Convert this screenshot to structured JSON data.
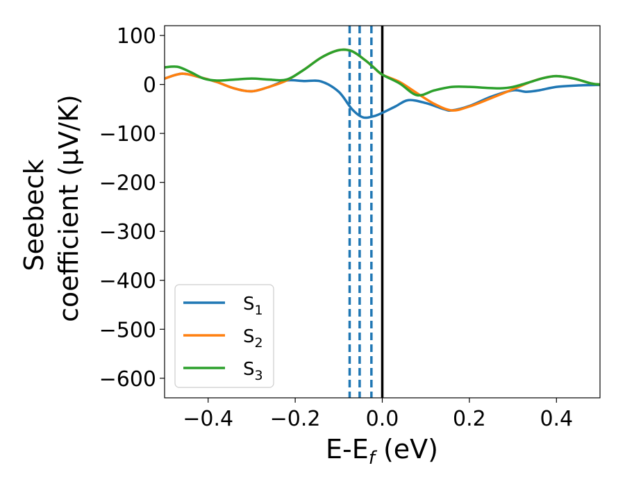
{
  "chart_data": {
    "type": "line",
    "xlabel_main": "E-E",
    "xlabel_sub": "f",
    "xlabel_unit": " (eV)",
    "ylabel_line1": "Seebeck",
    "ylabel_line2": "coefficient  (μV/K)",
    "xlim": [
      -0.5,
      0.5
    ],
    "ylim": [
      -640,
      120
    ],
    "x_ticks": [
      -0.4,
      -0.2,
      0.0,
      0.2,
      0.4
    ],
    "x_tick_labels": [
      "−0.4",
      "−0.2",
      "0.0",
      "0.2",
      "0.4"
    ],
    "y_ticks": [
      100,
      0,
      -100,
      -200,
      -300,
      -400,
      -500,
      -600
    ],
    "y_tick_labels": [
      "100",
      "0",
      "−100",
      "−200",
      "−300",
      "−400",
      "−500",
      "−600"
    ],
    "grid": false,
    "legend_position": "lower-left",
    "vertical_lines": [
      {
        "x": -0.075,
        "style": "dashed",
        "color": "#1f77b4"
      },
      {
        "x": -0.052,
        "style": "dashed",
        "color": "#1f77b4"
      },
      {
        "x": -0.025,
        "style": "dashed",
        "color": "#1f77b4"
      },
      {
        "x": 0.0,
        "style": "solid",
        "color": "#000000"
      }
    ],
    "series": [
      {
        "label_main": "S",
        "label_sub": "1",
        "color": "#1f77b4",
        "points": [
          [
            -0.5,
            12
          ],
          [
            -0.46,
            22
          ],
          [
            -0.42,
            15
          ],
          [
            -0.38,
            5
          ],
          [
            -0.34,
            -8
          ],
          [
            -0.3,
            -14
          ],
          [
            -0.26,
            -5
          ],
          [
            -0.22,
            8
          ],
          [
            -0.18,
            7
          ],
          [
            -0.14,
            6
          ],
          [
            -0.1,
            -15
          ],
          [
            -0.07,
            -50
          ],
          [
            -0.045,
            -67
          ],
          [
            -0.02,
            -65
          ],
          [
            0.0,
            -58
          ],
          [
            0.03,
            -45
          ],
          [
            0.06,
            -32
          ],
          [
            0.1,
            -38
          ],
          [
            0.14,
            -50
          ],
          [
            0.16,
            -53
          ],
          [
            0.2,
            -44
          ],
          [
            0.25,
            -25
          ],
          [
            0.3,
            -12
          ],
          [
            0.33,
            -15
          ],
          [
            0.36,
            -12
          ],
          [
            0.4,
            -5
          ],
          [
            0.45,
            -2
          ],
          [
            0.5,
            -1
          ]
        ]
      },
      {
        "label_main": "S",
        "label_sub": "2",
        "color": "#ff7f0e",
        "points": [
          [
            -0.5,
            12
          ],
          [
            -0.46,
            22
          ],
          [
            -0.42,
            15
          ],
          [
            -0.38,
            5
          ],
          [
            -0.34,
            -8
          ],
          [
            -0.3,
            -14
          ],
          [
            -0.26,
            -5
          ],
          [
            -0.22,
            8
          ],
          [
            -0.18,
            30
          ],
          [
            -0.14,
            55
          ],
          [
            -0.1,
            70
          ],
          [
            -0.07,
            68
          ],
          [
            -0.04,
            50
          ],
          [
            -0.02,
            35
          ],
          [
            0.0,
            20
          ],
          [
            0.04,
            5
          ],
          [
            0.08,
            -18
          ],
          [
            0.12,
            -40
          ],
          [
            0.16,
            -53
          ],
          [
            0.2,
            -45
          ],
          [
            0.25,
            -28
          ],
          [
            0.3,
            -10
          ],
          [
            0.34,
            5
          ],
          [
            0.37,
            13
          ],
          [
            0.4,
            17
          ],
          [
            0.44,
            12
          ],
          [
            0.48,
            2
          ],
          [
            0.5,
            0
          ]
        ]
      },
      {
        "label_main": "S",
        "label_sub": "3",
        "color": "#2ca02c",
        "points": [
          [
            -0.5,
            35
          ],
          [
            -0.47,
            36
          ],
          [
            -0.44,
            25
          ],
          [
            -0.41,
            12
          ],
          [
            -0.38,
            8
          ],
          [
            -0.34,
            10
          ],
          [
            -0.3,
            12
          ],
          [
            -0.26,
            10
          ],
          [
            -0.22,
            10
          ],
          [
            -0.18,
            30
          ],
          [
            -0.14,
            55
          ],
          [
            -0.1,
            70
          ],
          [
            -0.07,
            68
          ],
          [
            -0.04,
            50
          ],
          [
            -0.02,
            35
          ],
          [
            0.0,
            20
          ],
          [
            0.04,
            2
          ],
          [
            0.08,
            -22
          ],
          [
            0.12,
            -12
          ],
          [
            0.16,
            -5
          ],
          [
            0.2,
            -5
          ],
          [
            0.24,
            -7
          ],
          [
            0.27,
            -8
          ],
          [
            0.3,
            -5
          ],
          [
            0.34,
            5
          ],
          [
            0.37,
            13
          ],
          [
            0.4,
            17
          ],
          [
            0.44,
            12
          ],
          [
            0.48,
            2
          ],
          [
            0.5,
            0
          ]
        ]
      }
    ]
  }
}
